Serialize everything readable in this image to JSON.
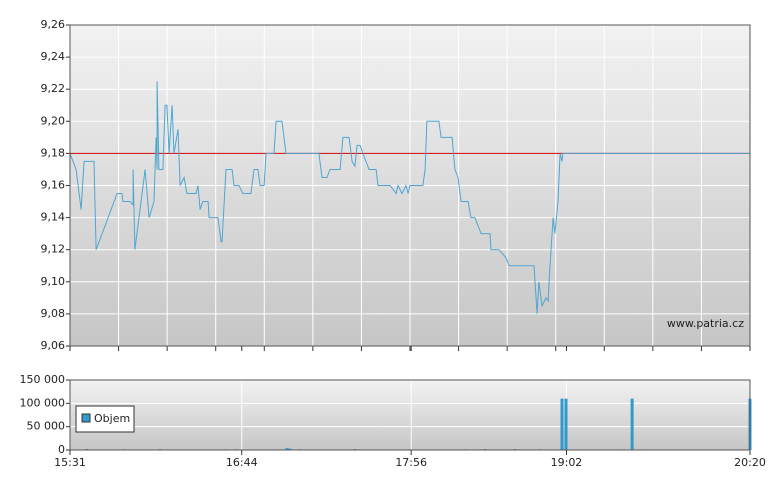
{
  "chart_data": [
    {
      "type": "line",
      "x": [
        0,
        2.6,
        4.7,
        6,
        10.2,
        11.1,
        20,
        22.1,
        22.5,
        25.5,
        26.8,
        26.8,
        27.6,
        31.9,
        33.6,
        35.7,
        36.6,
        37,
        37,
        37.8,
        39.5,
        40.4,
        41.2,
        42.1,
        43.4,
        44.2,
        45.9,
        46.8,
        48.5,
        49.7,
        53.6,
        54.4,
        55.3,
        56.5,
        58.7,
        59.1,
        62.9,
        64.2,
        64.6,
        66.3,
        68.9,
        69.7,
        71.8,
        73.5,
        76.9,
        78.2,
        79.9,
        80.8,
        82.5,
        83.3,
        86.7,
        87.6,
        90.1,
        91.8,
        105.8,
        107.1,
        109.2,
        110.5,
        114.8,
        116,
        118.6,
        119.9,
        121.1,
        122,
        123.3,
        124.5,
        127.1,
        130.1,
        130.9,
        136,
        138.6,
        139.4,
        141.1,
        142.8,
        143.7,
        144.5,
        150,
        150.9,
        151.7,
        156.8,
        157.7,
        162.4,
        163.6,
        164.9,
        166.2,
        169.2,
        170.4,
        172.1,
        174.7,
        178.5,
        178.9,
        182.3,
        185.3,
        186.6,
        197.2,
        198.5,
        199.3,
        200.6,
        202.3,
        203.2,
        204,
        205.3,
        206.1,
        207.4,
        208.3,
        209.1,
        209.5,
        289
      ],
      "values": [
        9.18,
        9.17,
        9.145,
        9.175,
        9.175,
        9.12,
        9.155,
        9.155,
        9.15,
        9.15,
        9.148,
        9.17,
        9.12,
        9.17,
        9.14,
        9.15,
        9.19,
        9.17,
        9.225,
        9.17,
        9.17,
        9.21,
        9.21,
        9.18,
        9.21,
        9.18,
        9.195,
        9.16,
        9.165,
        9.155,
        9.155,
        9.16,
        9.145,
        9.15,
        9.15,
        9.14,
        9.14,
        9.125,
        9.125,
        9.17,
        9.17,
        9.16,
        9.16,
        9.155,
        9.155,
        9.17,
        9.17,
        9.16,
        9.16,
        9.18,
        9.18,
        9.2,
        9.2,
        9.18,
        9.18,
        9.165,
        9.165,
        9.17,
        9.17,
        9.19,
        9.19,
        9.175,
        9.172,
        9.185,
        9.185,
        9.18,
        9.17,
        9.17,
        9.16,
        9.16,
        9.155,
        9.16,
        9.155,
        9.16,
        9.155,
        9.16,
        9.16,
        9.17,
        9.2,
        9.2,
        9.19,
        9.19,
        9.17,
        9.165,
        9.15,
        9.15,
        9.14,
        9.14,
        9.13,
        9.13,
        9.12,
        9.12,
        9.115,
        9.11,
        9.11,
        9.08,
        9.1,
        9.085,
        9.09,
        9.088,
        9.11,
        9.14,
        9.13,
        9.15,
        9.18,
        9.175,
        9.18,
        9.18
      ],
      "color": "#4fa6d2",
      "reference_line": {
        "value": 9.18,
        "color": "#cc0000"
      },
      "xlim": [
        0,
        289
      ],
      "ylim": [
        9.06,
        9.26
      ],
      "yticks": [
        {
          "value": 9.06,
          "label": "9,06"
        },
        {
          "value": 9.08,
          "label": "9,08"
        },
        {
          "value": 9.1,
          "label": "9,10"
        },
        {
          "value": 9.12,
          "label": "9,12"
        },
        {
          "value": 9.14,
          "label": "9,14"
        },
        {
          "value": 9.16,
          "label": "9,16"
        },
        {
          "value": 9.18,
          "label": "9,18"
        },
        {
          "value": 9.2,
          "label": "9,20"
        },
        {
          "value": 9.22,
          "label": "9,22"
        },
        {
          "value": 9.24,
          "label": "9,24"
        },
        {
          "value": 9.26,
          "label": "9,26"
        }
      ],
      "grid": true,
      "watermark": "www.patria.cz"
    },
    {
      "type": "bar",
      "x": [
        7.2,
        23,
        38.3,
        65.9,
        70.6,
        92.2,
        93.5,
        97.8,
        121,
        144.5,
        167.9,
        176.4,
        189,
        199.7,
        209.1,
        210.8,
        238.9,
        289
      ],
      "series": [
        {
          "name": "Objem",
          "color": "#3399cc",
          "values": [
            2000,
            1500,
            2000,
            1500,
            1500,
            4000,
            3000,
            1500,
            2000,
            1500,
            1500,
            2000,
            2000,
            1500,
            110000,
            110000,
            110000,
            110000
          ]
        }
      ],
      "xlim": [
        0,
        289
      ],
      "xticks": [
        {
          "value": 0,
          "label": "15:31"
        },
        {
          "value": 73,
          "label": "16:44"
        },
        {
          "value": 145,
          "label": "17:56"
        },
        {
          "value": 211,
          "label": "19:02"
        },
        {
          "value": 289,
          "label": "20:20"
        }
      ],
      "ylim": [
        0,
        150000
      ],
      "yticks": [
        0,
        {
          "value": 50000,
          "label": "50 000"
        },
        {
          "value": 100000,
          "label": "100 000"
        },
        {
          "value": 150000,
          "label": "150 000"
        }
      ],
      "grid": true,
      "legend": "upper left"
    }
  ]
}
